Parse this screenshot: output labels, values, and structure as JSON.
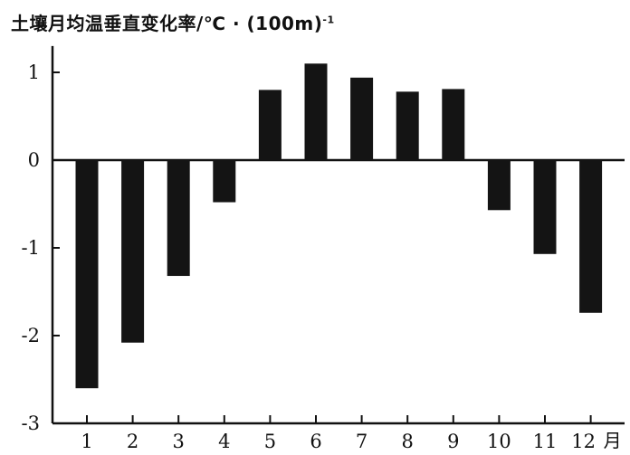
{
  "chart_data": {
    "type": "bar",
    "title": "土壤月均温垂直变化率/℃ · (100m)",
    "title_superscript": "-1",
    "categories": [
      "1",
      "2",
      "3",
      "4",
      "5",
      "6",
      "7",
      "8",
      "9",
      "10",
      "11",
      "12"
    ],
    "category_suffix": "月",
    "values": [
      -2.6,
      -2.08,
      -1.32,
      -0.48,
      0.8,
      1.1,
      0.94,
      0.78,
      0.81,
      -0.57,
      -1.07,
      -1.74
    ],
    "yticks": [
      1,
      0,
      -1,
      -2,
      -3
    ],
    "ylim": [
      -3,
      1.3
    ],
    "xlabel": "",
    "ylabel": "",
    "grid": false,
    "bar_color": "#141414"
  }
}
